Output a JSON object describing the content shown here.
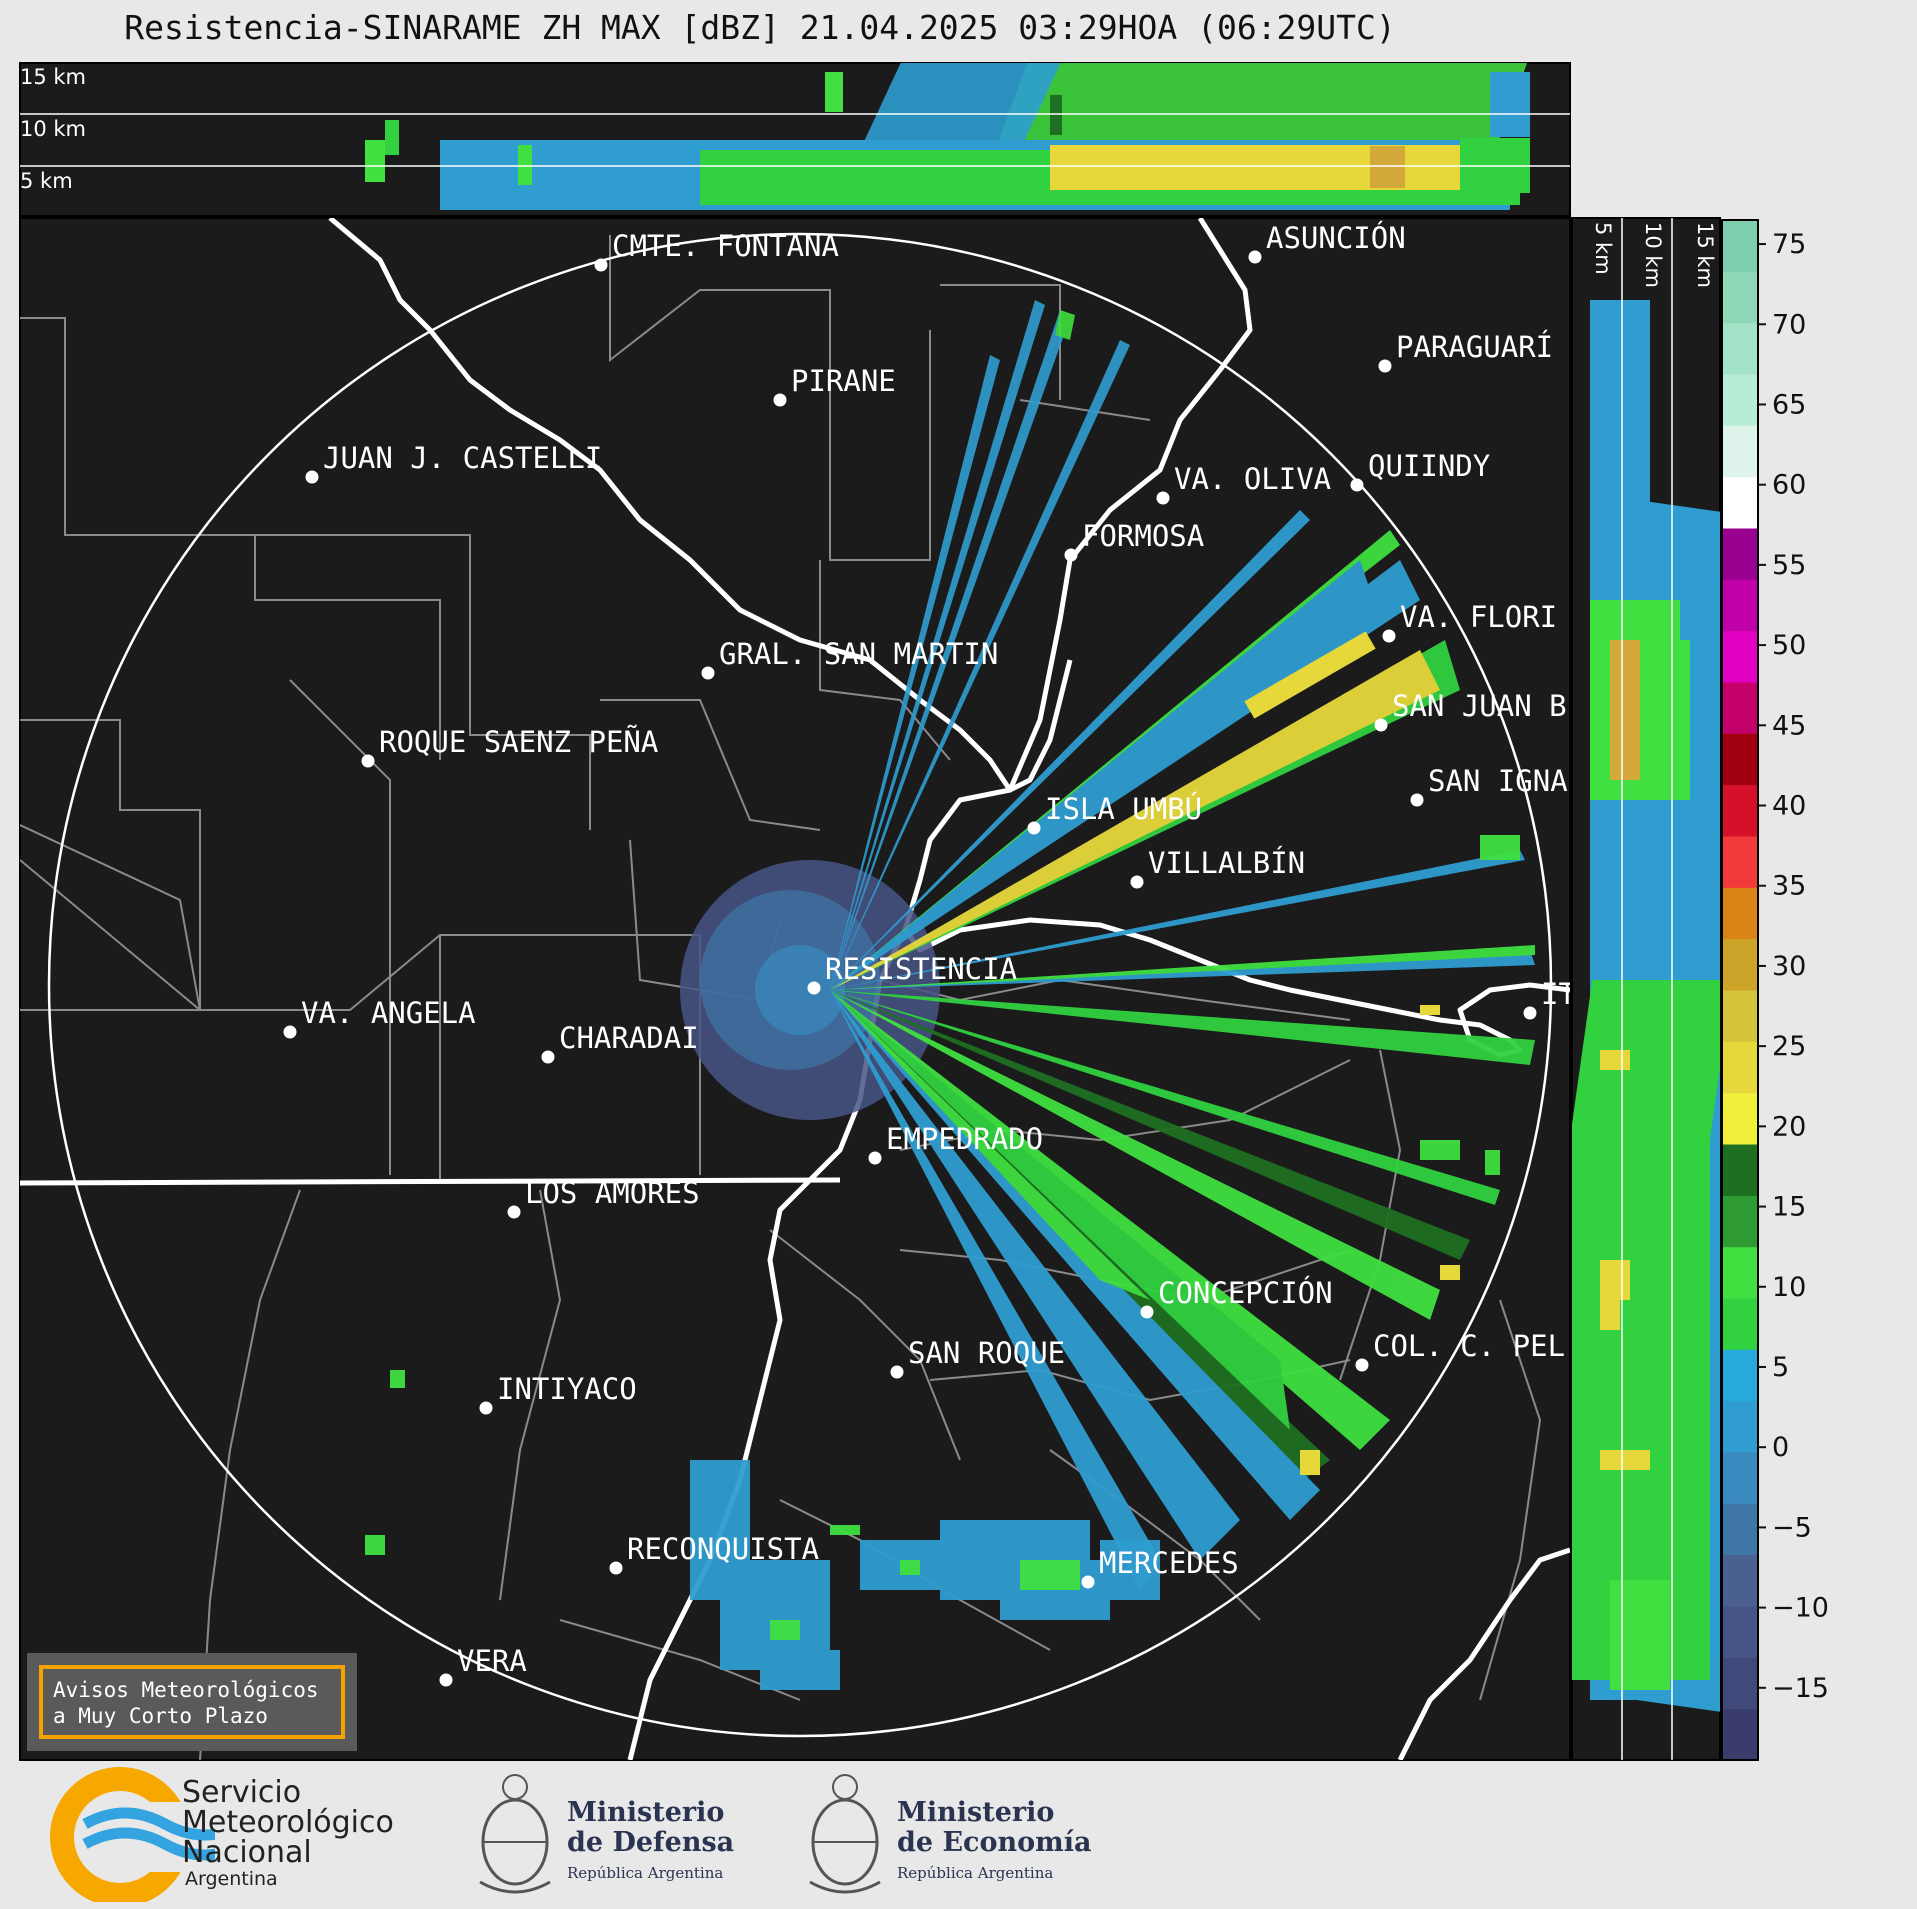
{
  "title": "Resistencia-SINARAME ZH MAX [dBZ] 21.04.2025 03:29HOA (06:29UTC)",
  "top_panel": {
    "altitude_labels": [
      "15 km",
      "10 km",
      "5 km"
    ]
  },
  "side_panel": {
    "altitude_labels": [
      "5 km",
      "10 km",
      "15 km"
    ]
  },
  "colorbar": {
    "unit": "dBZ",
    "ticks": [
      "75",
      "70",
      "65",
      "60",
      "55",
      "50",
      "45",
      "40",
      "35",
      "30",
      "25",
      "20",
      "15",
      "10",
      "5",
      "0",
      "−5",
      "−10",
      "−15"
    ],
    "range": [
      -19.5,
      76.5
    ],
    "colors": [
      "#3a3d6b",
      "#41487a",
      "#465585",
      "#4a6190",
      "#3f76a8",
      "#3a8ac0",
      "#2f9dd0",
      "#26aadd",
      "#31d13f",
      "#3fe040",
      "#2e9a34",
      "#1f6f22",
      "#f0ef3c",
      "#e6d83a",
      "#d4c33b",
      "#cda42a",
      "#d98414",
      "#f23a3a",
      "#d7102a",
      "#a00010",
      "#c4006a",
      "#e000c0",
      "#c000a8",
      "#9a0090",
      "#ffffff",
      "#dff4ea",
      "#b8ecd5",
      "#a3e3c7",
      "#8ed8b8",
      "#7ecfae"
    ]
  },
  "cities": [
    {
      "name": "CMTE. FONTANA"
    },
    {
      "name": "ASUNCIÓN"
    },
    {
      "name": "PARAGUARÍ"
    },
    {
      "name": "PIRANE"
    },
    {
      "name": "JUAN J. CASTELLI"
    },
    {
      "name": "VA. OLIVA"
    },
    {
      "name": "QUIINDY"
    },
    {
      "name": "FORMOSA"
    },
    {
      "name": "VA. FLORI"
    },
    {
      "name": "GRAL. SAN MARTIN"
    },
    {
      "name": "SAN JUAN B"
    },
    {
      "name": "ROQUE SAENZ PEÑA"
    },
    {
      "name": "SAN IGNA"
    },
    {
      "name": "ISLA UMBÚ"
    },
    {
      "name": "VILLALBÍN"
    },
    {
      "name": "RESISTENCIA"
    },
    {
      "name": "VA. ANGELA"
    },
    {
      "name": "CHARADAI"
    },
    {
      "name": "IT"
    },
    {
      "name": "EMPEDRADO"
    },
    {
      "name": "LOS AMORES"
    },
    {
      "name": "CONCEPCIÓN"
    },
    {
      "name": "COL. C. PEL"
    },
    {
      "name": "SAN ROQUE"
    },
    {
      "name": "INTIYACO"
    },
    {
      "name": "RECONQUISTA"
    },
    {
      "name": "MERCEDES"
    },
    {
      "name": "VERA"
    }
  ],
  "notice": {
    "line1": "Avisos Meteorológicos",
    "line2": "a Muy Corto Plazo"
  },
  "logos": {
    "smn": {
      "line1": "Servicio",
      "line2": "Meteorológico",
      "line3": "Nacional",
      "country": "Argentina"
    },
    "defensa": {
      "line1": "Ministerio",
      "line2": "de Defensa",
      "sub": "República Argentina"
    },
    "economia": {
      "line1": "Ministerio",
      "line2": "de Economía",
      "sub": "República Argentina"
    }
  },
  "style": {
    "map_bg": "#1b1b1b",
    "range_ring": "#ffffff",
    "border_major": "#ffffff",
    "border_minor": "#8a8a8a"
  }
}
